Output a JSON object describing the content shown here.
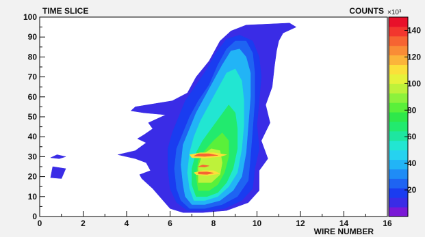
{
  "chart_data": {
    "type": "heatmap",
    "title": "TIME SLICE",
    "xlabel": "WIRE NUMBER",
    "ylabel": "",
    "colorbar_label": "COUNTS",
    "colorbar_multiplier": "×10³",
    "xlim": [
      0,
      16
    ],
    "ylim": [
      0,
      100
    ],
    "xticks": [
      "0",
      "2",
      "4",
      "6",
      "8",
      "10",
      "12",
      "14",
      "16"
    ],
    "yticks": [
      "0",
      "10",
      "20",
      "30",
      "40",
      "50",
      "60",
      "70",
      "80",
      "90",
      "100"
    ],
    "colorbar_ticks": [
      "20",
      "40",
      "60",
      "80",
      "100",
      "120",
      "140"
    ],
    "zlim": [
      0,
      150
    ],
    "grid": false,
    "colorscale": [
      "#7a18d6",
      "#3a2ce6",
      "#1a3cf0",
      "#1e64f2",
      "#1f8cf6",
      "#22b4f6",
      "#26d2f0",
      "#22e6d2",
      "#1ee6a0",
      "#22ea6e",
      "#2ee84a",
      "#5af03a",
      "#8cf23c",
      "#bef23a",
      "#e6f23a",
      "#fbe03a",
      "#fbb43a",
      "#f98c36",
      "#f66432",
      "#f2362e",
      "#e8102a"
    ],
    "regions": [
      {
        "level": 1,
        "points": [
          [
            6.6,
            2
          ],
          [
            7.5,
            2
          ],
          [
            8.6,
            3
          ],
          [
            9.6,
            7
          ],
          [
            10.1,
            13
          ],
          [
            10.1,
            23
          ],
          [
            10.5,
            29
          ],
          [
            10.2,
            38
          ],
          [
            10.6,
            47
          ],
          [
            10.4,
            56
          ],
          [
            10.7,
            65
          ],
          [
            10.8,
            75
          ],
          [
            10.9,
            83
          ],
          [
            11.0,
            88
          ],
          [
            11.2,
            92
          ],
          [
            11.8,
            95
          ],
          [
            11.5,
            97
          ],
          [
            9.5,
            96
          ],
          [
            8.8,
            93
          ],
          [
            8.3,
            88
          ],
          [
            7.8,
            78
          ],
          [
            7.2,
            70
          ],
          [
            6.8,
            62
          ],
          [
            6.1,
            58
          ],
          [
            4.4,
            55
          ],
          [
            4.2,
            53
          ],
          [
            4.8,
            52
          ],
          [
            5.8,
            51
          ],
          [
            5.0,
            47
          ],
          [
            5.2,
            44
          ],
          [
            4.8,
            41
          ],
          [
            4.5,
            39
          ],
          [
            4.9,
            37
          ],
          [
            4.4,
            33
          ],
          [
            3.6,
            31
          ],
          [
            4.4,
            29
          ],
          [
            4.9,
            27
          ],
          [
            5.1,
            23
          ],
          [
            4.6,
            21
          ],
          [
            4.7,
            19
          ],
          [
            4.9,
            17
          ],
          [
            5.2,
            14
          ],
          [
            5.6,
            9
          ],
          [
            6.0,
            4
          ]
        ]
      },
      {
        "level": 1,
        "points": [
          [
            1.2,
            30
          ],
          [
            0.8,
            31
          ],
          [
            0.5,
            29.5
          ],
          [
            0.9,
            29
          ]
        ]
      },
      {
        "level": 1,
        "points": [
          [
            1.2,
            24
          ],
          [
            0.6,
            25
          ],
          [
            0.5,
            19.5
          ],
          [
            1.0,
            19
          ]
        ]
      },
      {
        "level": 2,
        "points": [
          [
            6.8,
            3
          ],
          [
            7.6,
            3
          ],
          [
            8.5,
            4
          ],
          [
            9.3,
            8
          ],
          [
            9.8,
            14
          ],
          [
            9.9,
            24
          ],
          [
            10.1,
            34
          ],
          [
            10.0,
            46
          ],
          [
            10.1,
            58
          ],
          [
            10.2,
            70
          ],
          [
            10.1,
            80
          ],
          [
            9.8,
            88
          ],
          [
            9.2,
            91
          ],
          [
            8.6,
            89
          ],
          [
            8.1,
            82
          ],
          [
            7.7,
            74
          ],
          [
            7.2,
            66
          ],
          [
            6.7,
            58
          ],
          [
            6.4,
            50
          ],
          [
            6.1,
            42
          ],
          [
            5.9,
            34
          ],
          [
            5.9,
            24
          ],
          [
            6.0,
            14
          ],
          [
            6.3,
            7
          ]
        ]
      },
      {
        "level": 3,
        "points": [
          [
            6.9,
            4
          ],
          [
            7.6,
            4
          ],
          [
            8.4,
            6
          ],
          [
            9.1,
            10
          ],
          [
            9.6,
            18
          ],
          [
            9.7,
            30
          ],
          [
            9.8,
            44
          ],
          [
            9.9,
            58
          ],
          [
            9.9,
            72
          ],
          [
            9.8,
            82
          ],
          [
            9.5,
            88
          ],
          [
            9.0,
            88
          ],
          [
            8.6,
            84
          ],
          [
            8.2,
            76
          ],
          [
            7.8,
            66
          ],
          [
            7.3,
            58
          ],
          [
            6.9,
            50
          ],
          [
            6.6,
            42
          ],
          [
            6.3,
            34
          ],
          [
            6.2,
            24
          ],
          [
            6.3,
            14
          ],
          [
            6.5,
            8
          ]
        ]
      },
      {
        "level": 5,
        "points": [
          [
            7.0,
            6
          ],
          [
            7.6,
            6
          ],
          [
            8.3,
            8
          ],
          [
            8.9,
            13
          ],
          [
            9.3,
            20
          ],
          [
            9.5,
            32
          ],
          [
            9.6,
            46
          ],
          [
            9.7,
            60
          ],
          [
            9.7,
            72
          ],
          [
            9.5,
            80
          ],
          [
            9.2,
            84
          ],
          [
            8.8,
            83
          ],
          [
            8.4,
            76
          ],
          [
            8.0,
            68
          ],
          [
            7.6,
            60
          ],
          [
            7.2,
            52
          ],
          [
            6.9,
            44
          ],
          [
            6.6,
            36
          ],
          [
            6.5,
            26
          ],
          [
            6.6,
            16
          ],
          [
            6.7,
            10
          ]
        ]
      },
      {
        "level": 7,
        "points": [
          [
            7.1,
            8
          ],
          [
            7.6,
            8
          ],
          [
            8.2,
            10
          ],
          [
            8.7,
            15
          ],
          [
            9.1,
            22
          ],
          [
            9.3,
            34
          ],
          [
            9.4,
            46
          ],
          [
            9.4,
            58
          ],
          [
            9.3,
            68
          ],
          [
            9.0,
            74
          ],
          [
            8.6,
            72
          ],
          [
            8.2,
            64
          ],
          [
            7.8,
            56
          ],
          [
            7.4,
            48
          ],
          [
            7.1,
            40
          ],
          [
            6.9,
            32
          ],
          [
            6.8,
            22
          ],
          [
            6.9,
            14
          ]
        ]
      },
      {
        "level": 9,
        "points": [
          [
            7.2,
            10
          ],
          [
            7.7,
            10
          ],
          [
            8.2,
            12
          ],
          [
            8.6,
            17
          ],
          [
            8.9,
            24
          ],
          [
            9.1,
            34
          ],
          [
            9.1,
            44
          ],
          [
            9.0,
            52
          ],
          [
            8.7,
            56
          ],
          [
            8.3,
            50
          ],
          [
            7.9,
            44
          ],
          [
            7.5,
            38
          ],
          [
            7.2,
            32
          ],
          [
            7.0,
            24
          ],
          [
            7.0,
            16
          ]
        ]
      },
      {
        "level": 11,
        "points": [
          [
            7.3,
            13
          ],
          [
            7.8,
            13
          ],
          [
            8.2,
            16
          ],
          [
            8.5,
            22
          ],
          [
            8.7,
            30
          ],
          [
            8.7,
            38
          ],
          [
            8.4,
            42
          ],
          [
            8.0,
            38
          ],
          [
            7.6,
            33
          ],
          [
            7.3,
            28
          ],
          [
            7.2,
            20
          ]
        ]
      },
      {
        "level": 13,
        "points": [
          [
            7.3,
            17
          ],
          [
            7.9,
            17
          ],
          [
            8.3,
            21
          ],
          [
            8.4,
            27
          ],
          [
            8.3,
            33
          ],
          [
            7.9,
            34
          ],
          [
            7.5,
            31
          ],
          [
            7.3,
            25
          ]
        ]
      },
      {
        "level": 15,
        "points": [
          [
            7.0,
            29.5
          ],
          [
            7.6,
            29.3
          ],
          [
            8.3,
            30
          ],
          [
            8.6,
            31
          ],
          [
            8.0,
            32
          ],
          [
            7.4,
            32
          ],
          [
            6.9,
            31
          ]
        ]
      },
      {
        "level": 15,
        "points": [
          [
            7.2,
            21
          ],
          [
            7.7,
            20.5
          ],
          [
            8.3,
            21.5
          ],
          [
            8.0,
            23
          ],
          [
            7.5,
            23
          ],
          [
            7.1,
            22
          ]
        ]
      },
      {
        "level": 18,
        "points": [
          [
            7.1,
            30.3
          ],
          [
            7.6,
            30.1
          ],
          [
            8.2,
            30.6
          ],
          [
            7.8,
            31.5
          ],
          [
            7.3,
            31.5
          ]
        ]
      },
      {
        "level": 18,
        "points": [
          [
            7.3,
            21.3
          ],
          [
            7.7,
            21.1
          ],
          [
            8.0,
            21.8
          ],
          [
            7.7,
            22.4
          ],
          [
            7.3,
            22.3
          ]
        ]
      },
      {
        "level": 18,
        "points": [
          [
            7.3,
            25.0
          ],
          [
            7.6,
            24.8
          ],
          [
            7.8,
            25.4
          ],
          [
            7.5,
            25.9
          ]
        ]
      }
    ]
  }
}
